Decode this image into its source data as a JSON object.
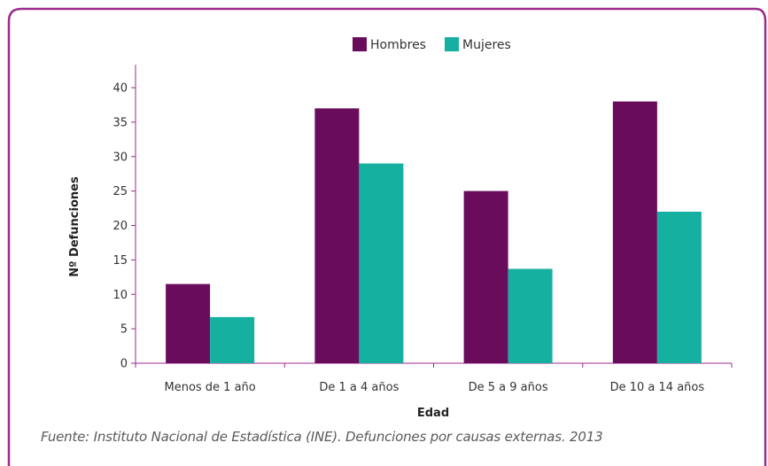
{
  "colors": {
    "frame": "#9c2a8e",
    "hombres": "#690c5c",
    "mujeres": "#15b0a0",
    "axis": "#9c2a8e"
  },
  "source_note": "Fuente: Instituto Nacional de Estadística (INE). Defunciones por causas externas. 2013",
  "chart_data": {
    "type": "bar",
    "xlabel": "Edad",
    "ylabel": "Nº Defunciones",
    "categories": [
      "Menos de 1 año",
      "De 1 a 4 años",
      "De 5 a 9 años",
      "De 10 a 14 años"
    ],
    "series": [
      {
        "name": "Hombres",
        "values": [
          11.5,
          37,
          25,
          38
        ]
      },
      {
        "name": "Mujeres",
        "values": [
          6.7,
          29,
          13.7,
          22
        ]
      }
    ],
    "ylim": [
      0,
      40
    ],
    "yticks": [
      "0",
      "5",
      "10",
      "15",
      "20",
      "25",
      "30",
      "35",
      "40"
    ],
    "grid": false,
    "legend": "top-center"
  }
}
